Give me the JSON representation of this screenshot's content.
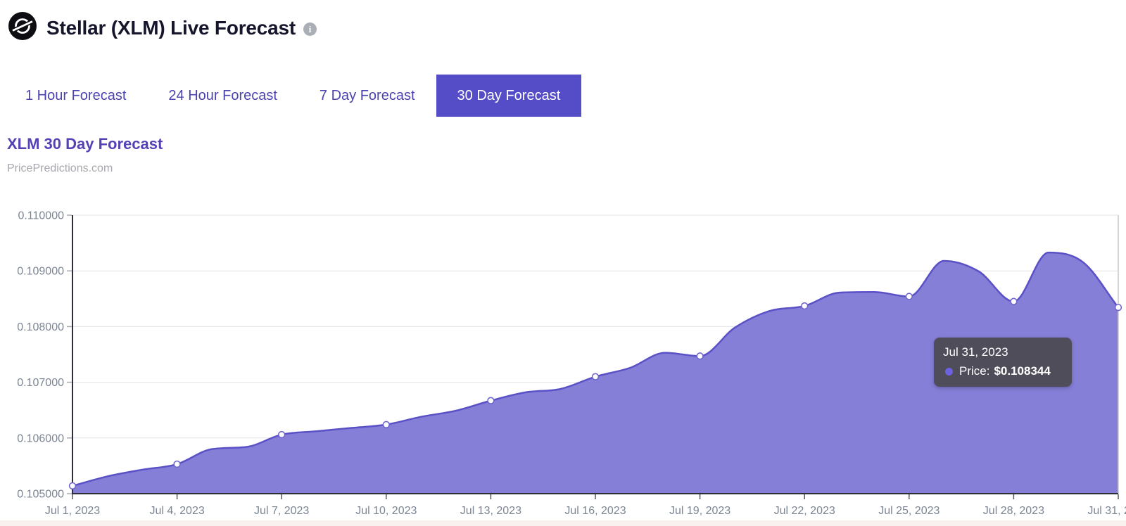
{
  "header": {
    "title": "Stellar (XLM) Live Forecast"
  },
  "tabs": [
    {
      "label": "1 Hour Forecast",
      "active": false
    },
    {
      "label": "24 Hour Forecast",
      "active": false
    },
    {
      "label": "7 Day Forecast",
      "active": false
    },
    {
      "label": "30 Day Forecast",
      "active": true
    }
  ],
  "section": {
    "title": "XLM 30 Day Forecast",
    "source": "PricePredictions.com"
  },
  "tooltip": {
    "date": "Jul 31, 2023",
    "label": "Price:",
    "value": "$0.108344"
  },
  "chart_data": {
    "type": "area",
    "title": "XLM 30 Day Forecast",
    "xlabel": "",
    "ylabel": "",
    "x": [
      "Jul 1, 2023",
      "Jul 2, 2023",
      "Jul 3, 2023",
      "Jul 4, 2023",
      "Jul 5, 2023",
      "Jul 6, 2023",
      "Jul 7, 2023",
      "Jul 8, 2023",
      "Jul 9, 2023",
      "Jul 10, 2023",
      "Jul 11, 2023",
      "Jul 12, 2023",
      "Jul 13, 2023",
      "Jul 14, 2023",
      "Jul 15, 2023",
      "Jul 16, 2023",
      "Jul 17, 2023",
      "Jul 18, 2023",
      "Jul 19, 2023",
      "Jul 20, 2023",
      "Jul 21, 2023",
      "Jul 22, 2023",
      "Jul 23, 2023",
      "Jul 24, 2023",
      "Jul 25, 2023",
      "Jul 26, 2023",
      "Jul 27, 2023",
      "Jul 28, 2023",
      "Jul 29, 2023",
      "Jul 30, 2023",
      "Jul 31, 2023"
    ],
    "values": [
      0.10514,
      0.10531,
      0.10543,
      0.10553,
      0.1058,
      0.10584,
      0.10606,
      0.10612,
      0.10618,
      0.10624,
      0.10638,
      0.10649,
      0.10667,
      0.10682,
      0.10688,
      0.1071,
      0.10726,
      0.10753,
      0.10747,
      0.10798,
      0.10828,
      0.10837,
      0.10861,
      0.10862,
      0.10854,
      0.10918,
      0.10899,
      0.10845,
      0.10933,
      0.10915,
      0.108344
    ],
    "ylim": [
      0.105,
      0.11
    ],
    "ytick_step": 0.001,
    "y_decimals": 6,
    "xtick_every": 3,
    "marker_every": 3,
    "grid": true,
    "legend": "none",
    "hover_index": 30,
    "colors": {
      "area": "#756dd3",
      "area_opacity": 0.88,
      "line": "#5b51c6",
      "marker_fill": "#ffffff",
      "marker_stroke": "#6f65cf",
      "axis": "#2e2e38",
      "grid": "#e5e4e8",
      "tick_x": "#55555f",
      "tick_y": "#a5a8b0",
      "label": "#7c8593",
      "crosshair": "#c9c9ce"
    }
  }
}
